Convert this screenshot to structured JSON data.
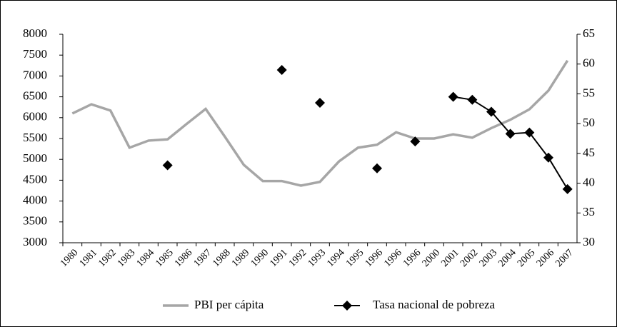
{
  "chart_data": {
    "type": "line",
    "categories": [
      "1980",
      "1981",
      "1982",
      "1983",
      "1984",
      "1985",
      "1986",
      "1987",
      "1988",
      "1989",
      "1990",
      "1991",
      "1992",
      "1993",
      "1994",
      "1995",
      "1996",
      "1996",
      "1996",
      "2000",
      "2001",
      "2002",
      "2003",
      "2004",
      "2005",
      "2006",
      "2007"
    ],
    "series": [
      {
        "name": "PBI per cápita",
        "color": "#a6a6a6",
        "values": [
          6100,
          6320,
          6170,
          5280,
          5450,
          5480,
          5850,
          6210,
          5550,
          4870,
          4480,
          4480,
          4370,
          4460,
          4950,
          5280,
          5350,
          5650,
          5500,
          5500,
          5600,
          5520,
          5750,
          5950,
          6200,
          6650,
          7370
        ]
      },
      {
        "name": "Tasa nacional de pobreza",
        "color": "#000000",
        "axis": "y2",
        "marker": "diamond",
        "values": [
          null,
          null,
          null,
          null,
          null,
          43,
          null,
          null,
          null,
          null,
          null,
          59,
          null,
          53.5,
          null,
          null,
          42.5,
          null,
          47,
          null,
          54.5,
          54,
          52,
          48.3,
          48.5,
          44.3,
          39
        ]
      }
    ],
    "ylim": [
      3000,
      8000
    ],
    "yticks": [
      3000,
      3500,
      4000,
      4500,
      5000,
      5500,
      6000,
      6500,
      7000,
      7500,
      8000
    ],
    "y2lim": [
      30,
      65
    ],
    "y2ticks": [
      30,
      35,
      40,
      45,
      50,
      55,
      60,
      65
    ],
    "grid": false,
    "legend": "bottom"
  }
}
